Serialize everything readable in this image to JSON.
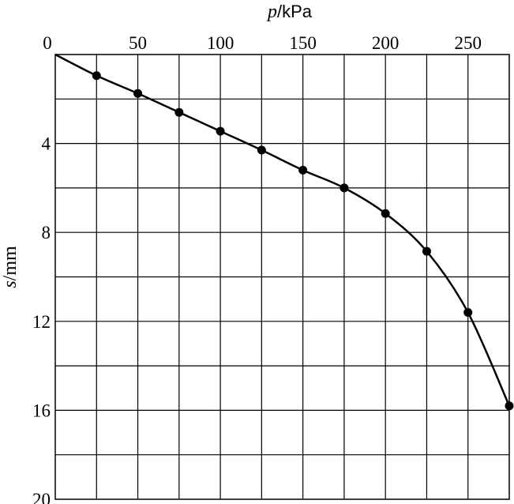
{
  "chart_data": {
    "type": "line",
    "xlabel": {
      "var": "p",
      "unit": "/kPa"
    },
    "ylabel": {
      "var": "s",
      "unit": "/mm"
    },
    "xlim": [
      0,
      275
    ],
    "ylim": [
      0,
      20
    ],
    "y_inverted": true,
    "x_axis_position": "top",
    "x_ticks": [
      0,
      50,
      100,
      150,
      200,
      250
    ],
    "y_ticks": [
      4,
      8,
      12,
      16,
      20
    ],
    "x_grid_step": 25,
    "y_grid_step": 2,
    "grid": true,
    "series": [
      {
        "points": [
          [
            25,
            0.95
          ],
          [
            50,
            1.75
          ],
          [
            75,
            2.6
          ],
          [
            100,
            3.45
          ],
          [
            125,
            4.3
          ],
          [
            150,
            5.2
          ],
          [
            175,
            6.0
          ],
          [
            200,
            7.15
          ],
          [
            225,
            8.85
          ],
          [
            250,
            11.6
          ],
          [
            275,
            15.8
          ]
        ]
      }
    ],
    "curve": [
      [
        0,
        0
      ],
      [
        25,
        0.95
      ],
      [
        50,
        1.75
      ],
      [
        75,
        2.6
      ],
      [
        100,
        3.45
      ],
      [
        125,
        4.3
      ],
      [
        150,
        5.2
      ],
      [
        175,
        6.0
      ],
      [
        200,
        7.15
      ],
      [
        225,
        8.85
      ],
      [
        250,
        11.6
      ],
      [
        275,
        15.8
      ]
    ]
  }
}
